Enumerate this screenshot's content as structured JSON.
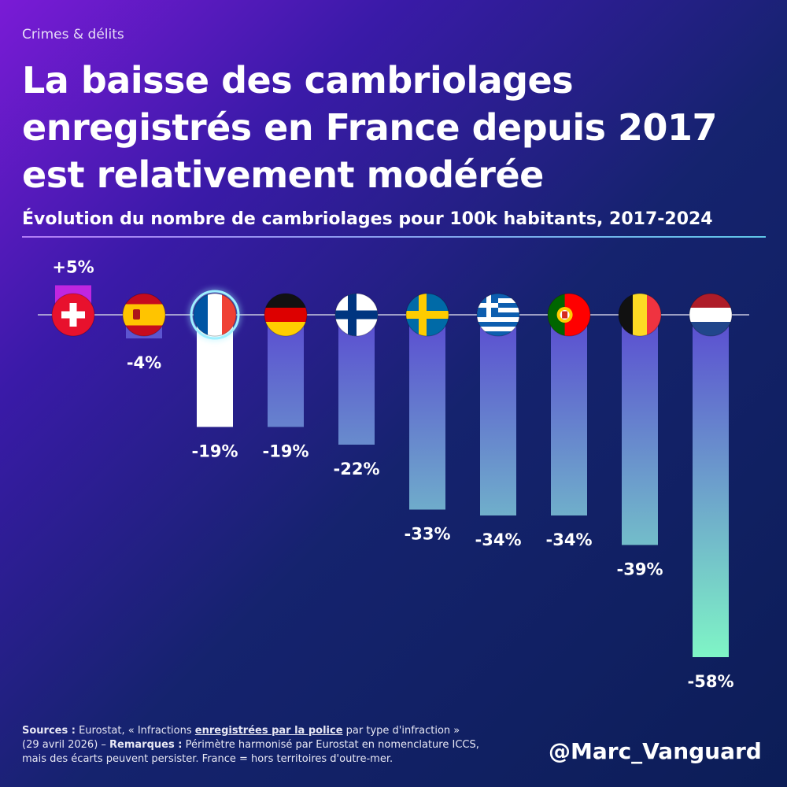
{
  "kicker": "Crimes & délits",
  "title_lines": [
    "La baisse des cambriolages",
    "enregistrés en France depuis 2017",
    "est relativement modérée"
  ],
  "subtitle": "Évolution du nombre de cambriolages pour 100k habitants, 2017-2024",
  "sources": {
    "label1": "Sources :",
    "text1": " Eurostat, « Infractions ",
    "emph": "enregistrées par la police",
    "text2": " par type d'infraction »",
    "text3": "(29 avril 2026) – ",
    "label2": "Remarques :",
    "text4": " Périmètre harmonisé par Eurostat en nomenclature ICCS,",
    "text5": "mais des écarts peuvent persister. France = hors territoires d'outre-mer."
  },
  "handle": "@Marc_Vanguard",
  "colors": {
    "positive_bar": "#c026e0",
    "france_bar": "#ffffff",
    "bar_gradient_top": "#5a4bd1",
    "bar_gradient_bottom": "#7ff5c6",
    "baseline": "#c8c8e0"
  },
  "chart_data": {
    "type": "bar",
    "categories": [
      "Switzerland",
      "Spain",
      "France",
      "Germany",
      "Finland",
      "Sweden",
      "Greece",
      "Portugal",
      "Belgium",
      "Netherlands"
    ],
    "values": [
      5,
      -4,
      -19,
      -19,
      -22,
      -33,
      -34,
      -34,
      -39,
      -58
    ],
    "data_labels": [
      "+5%",
      "-4%",
      "-19%",
      "-19%",
      "-22%",
      "-33%",
      "-34%",
      "-34%",
      "-39%",
      "-58%"
    ],
    "flags": [
      "switzerland-flag-icon",
      "spain-flag-icon",
      "france-flag-icon",
      "germany-flag-icon",
      "finland-flag-icon",
      "sweden-flag-icon",
      "greece-flag-icon",
      "portugal-flag-icon",
      "belgium-flag-icon",
      "netherlands-flag-icon"
    ],
    "highlight": "France",
    "title": "Évolution du nombre de cambriolages pour 100k habitants, 2017-2024",
    "unit": "%",
    "ylim": [
      -58,
      5
    ],
    "grid": false,
    "legend": "none"
  }
}
